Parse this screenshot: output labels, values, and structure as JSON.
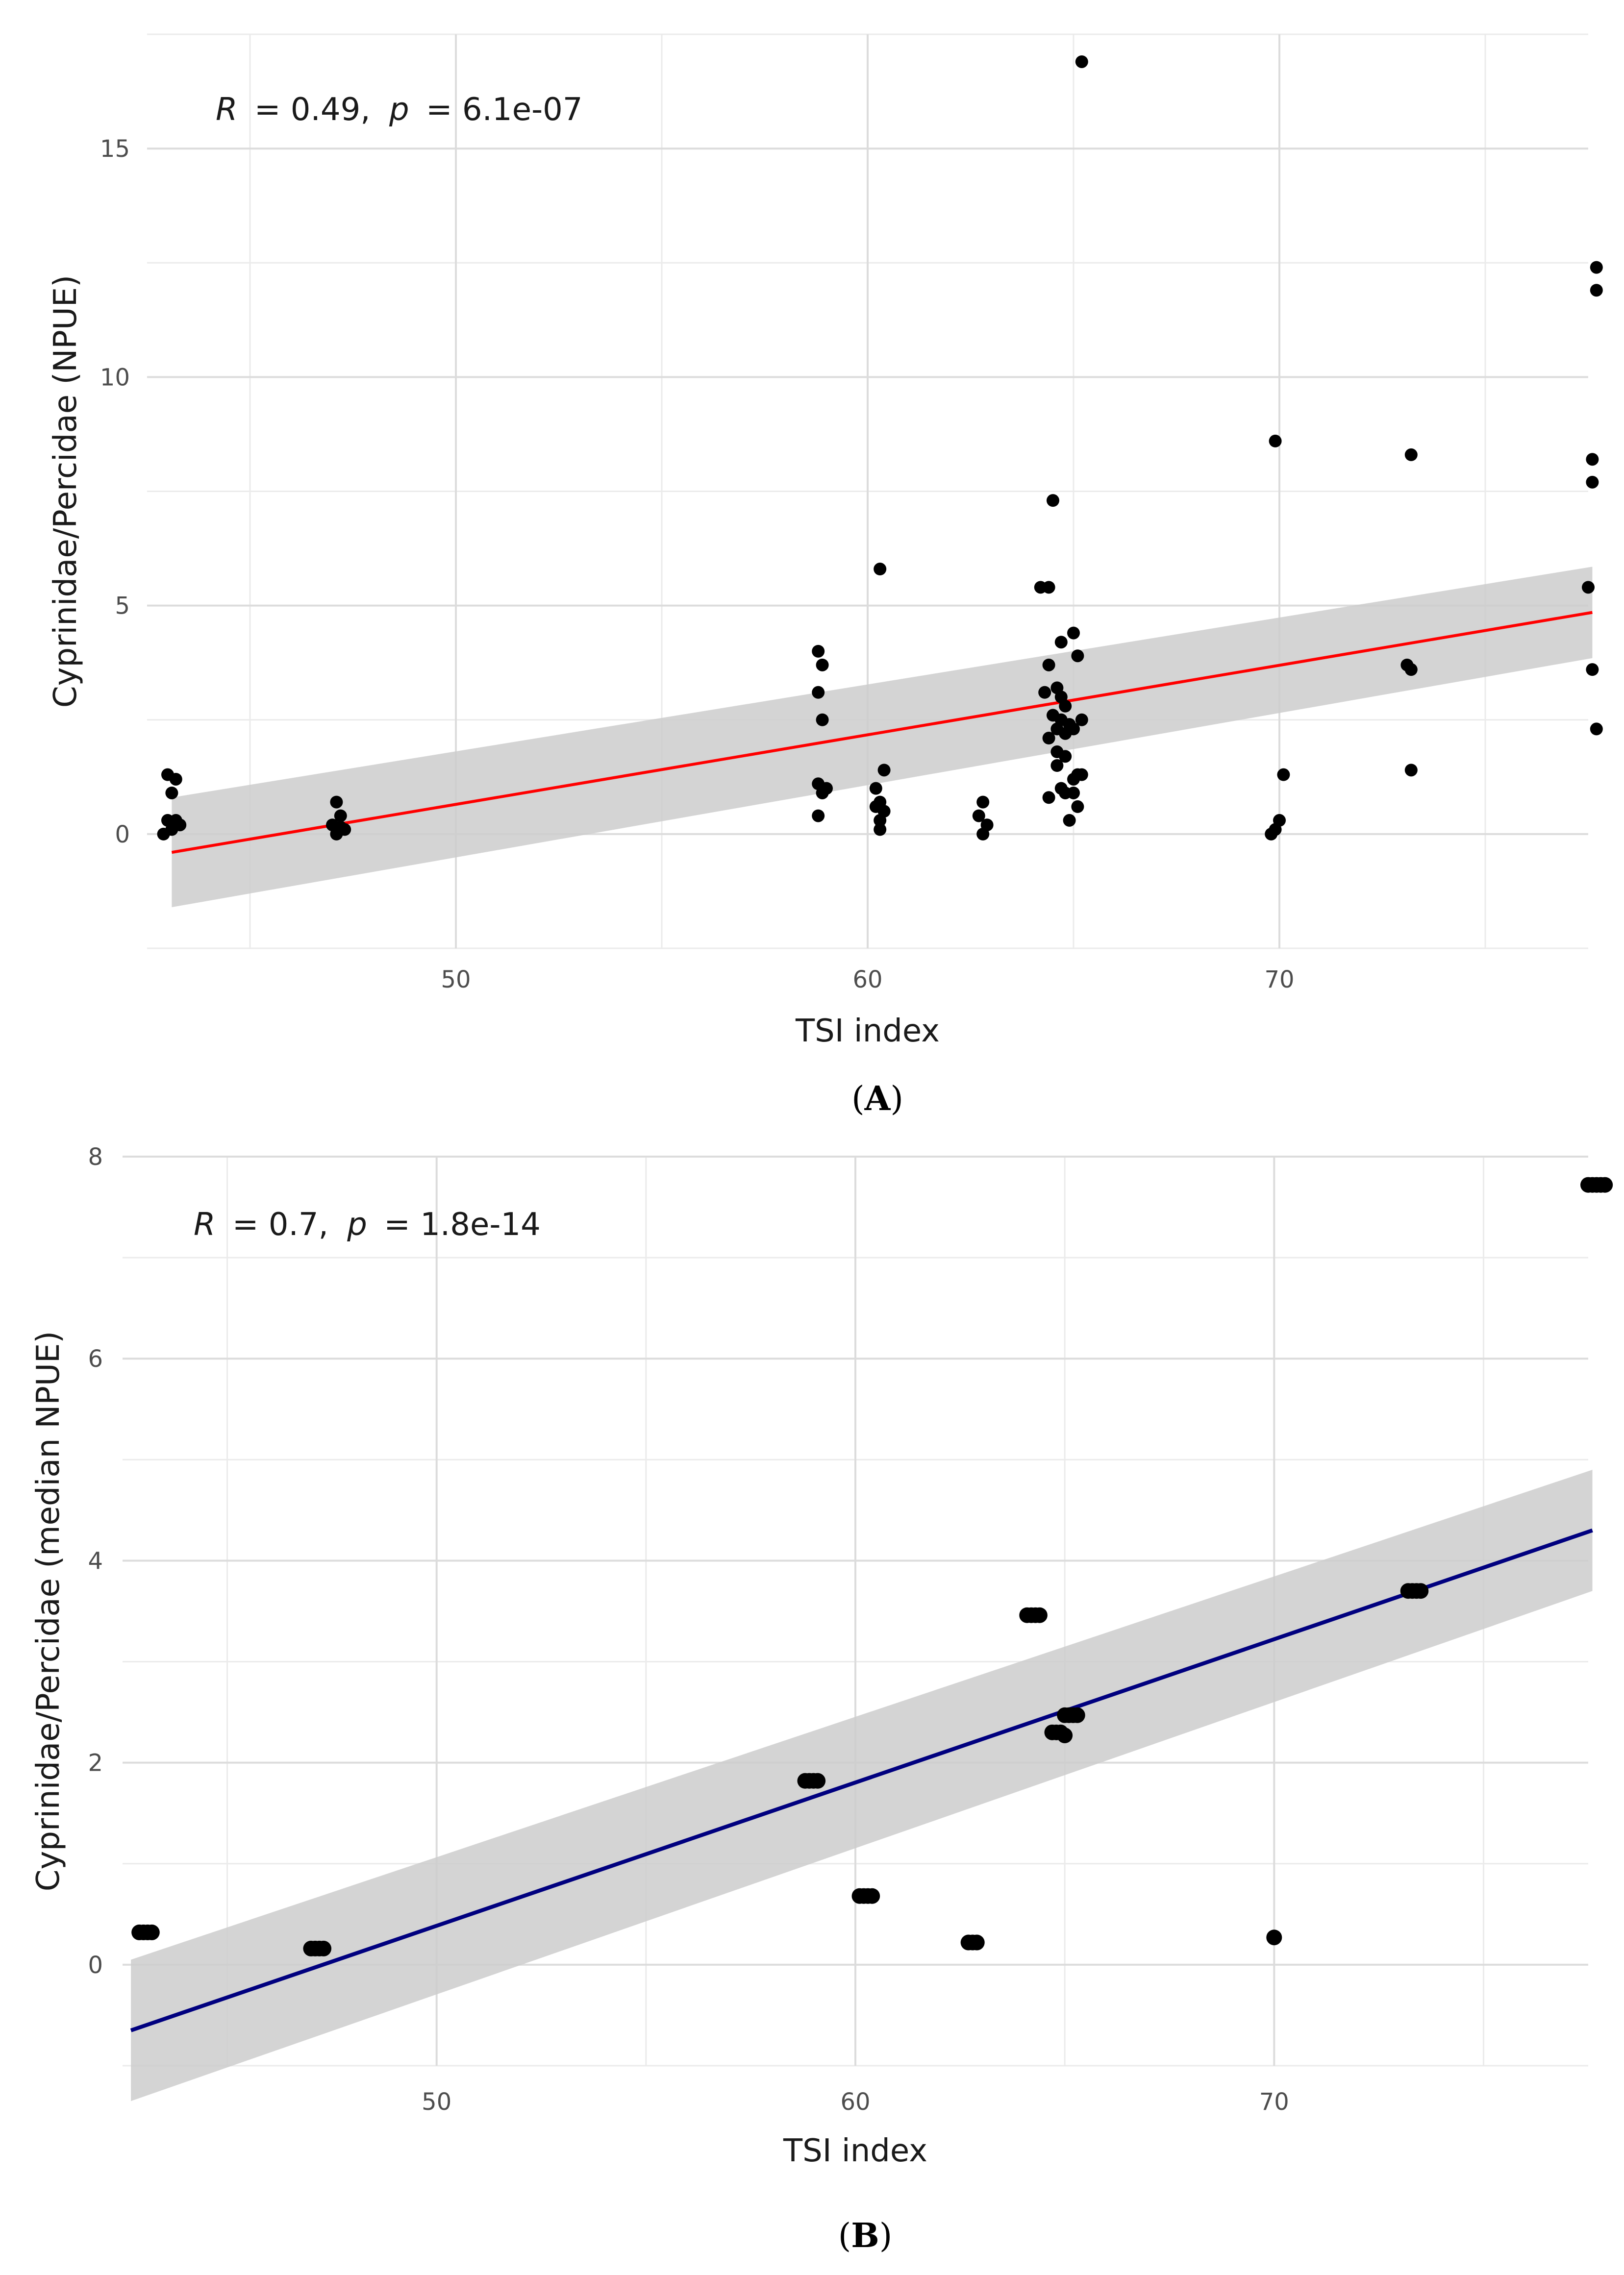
{
  "chart_data": [
    {
      "type": "scatter",
      "panel": "A",
      "caption_letter": "A",
      "xlabel": "TSI index",
      "ylabel": "Cyprinidae/Percidae (NPUE)",
      "xlim": [
        42.5,
        77.5
      ],
      "ylim": [
        -2.5,
        17.5
      ],
      "x_ticks": [
        50,
        60,
        70
      ],
      "x_ticks_minor": [
        45,
        55,
        65,
        75
      ],
      "y_ticks": [
        0,
        5,
        10,
        15
      ],
      "y_ticks_minor": [
        -2.5,
        2.5,
        7.5,
        12.5,
        17.5
      ],
      "annotation": {
        "r_label": "R",
        "r_value": "= 0.49,",
        "p_label": "p",
        "p_value": "= 6.1e-07"
      },
      "fit": {
        "x": [
          43.1,
          77.6
        ],
        "y": [
          -0.4,
          4.85
        ],
        "ci_low_start": -1.6,
        "ci_low_end": 3.85,
        "ci_high_start": 0.8,
        "ci_high_end": 5.85,
        "color": "#ff0000"
      },
      "point_color": "#000000",
      "points": [
        [
          43.0,
          1.3
        ],
        [
          43.2,
          1.2
        ],
        [
          43.1,
          0.9
        ],
        [
          43.0,
          0.3
        ],
        [
          43.3,
          0.2
        ],
        [
          43.1,
          0.1
        ],
        [
          42.9,
          0.0
        ],
        [
          43.2,
          0.3
        ],
        [
          47.1,
          0.7
        ],
        [
          47.2,
          0.4
        ],
        [
          47.0,
          0.2
        ],
        [
          47.3,
          0.1
        ],
        [
          47.1,
          0.0
        ],
        [
          47.2,
          0.15
        ],
        [
          58.8,
          4.0
        ],
        [
          58.9,
          3.7
        ],
        [
          58.8,
          3.1
        ],
        [
          58.9,
          2.5
        ],
        [
          58.8,
          1.1
        ],
        [
          59.0,
          1.0
        ],
        [
          58.9,
          0.9
        ],
        [
          58.8,
          0.4
        ],
        [
          60.3,
          5.8
        ],
        [
          60.4,
          1.4
        ],
        [
          60.2,
          1.0
        ],
        [
          60.3,
          0.7
        ],
        [
          60.4,
          0.5
        ],
        [
          60.2,
          0.6
        ],
        [
          60.3,
          0.3
        ],
        [
          60.3,
          0.1
        ],
        [
          62.8,
          0.7
        ],
        [
          62.7,
          0.4
        ],
        [
          62.9,
          0.2
        ],
        [
          62.8,
          0.0
        ],
        [
          64.2,
          5.4
        ],
        [
          64.4,
          5.4
        ],
        [
          64.5,
          7.3
        ],
        [
          64.4,
          3.7
        ],
        [
          64.6,
          3.2
        ],
        [
          64.3,
          3.1
        ],
        [
          64.7,
          4.2
        ],
        [
          65.0,
          4.4
        ],
        [
          65.1,
          3.9
        ],
        [
          64.7,
          3.0
        ],
        [
          64.8,
          2.8
        ],
        [
          64.5,
          2.6
        ],
        [
          64.7,
          2.5
        ],
        [
          64.9,
          2.4
        ],
        [
          65.2,
          2.5
        ],
        [
          64.6,
          2.3
        ],
        [
          64.8,
          2.2
        ],
        [
          65.0,
          2.3
        ],
        [
          64.4,
          2.1
        ],
        [
          64.6,
          1.8
        ],
        [
          64.8,
          1.7
        ],
        [
          64.6,
          1.5
        ],
        [
          65.1,
          1.3
        ],
        [
          65.0,
          1.2
        ],
        [
          64.7,
          1.0
        ],
        [
          64.4,
          0.8
        ],
        [
          64.8,
          0.9
        ],
        [
          65.0,
          0.9
        ],
        [
          65.1,
          0.6
        ],
        [
          64.9,
          0.3
        ],
        [
          65.2,
          1.3
        ],
        [
          65.2,
          16.9
        ],
        [
          69.9,
          8.6
        ],
        [
          70.1,
          1.3
        ],
        [
          70.0,
          0.3
        ],
        [
          69.9,
          0.1
        ],
        [
          69.8,
          0.0
        ],
        [
          73.2,
          8.3
        ],
        [
          73.1,
          3.7
        ],
        [
          73.2,
          3.6
        ],
        [
          73.2,
          1.4
        ],
        [
          77.7,
          12.4
        ],
        [
          77.7,
          11.9
        ],
        [
          77.6,
          8.2
        ],
        [
          77.6,
          7.7
        ],
        [
          77.5,
          5.4
        ],
        [
          77.6,
          3.6
        ],
        [
          77.7,
          2.3
        ]
      ]
    },
    {
      "type": "scatter",
      "panel": "B",
      "caption_letter": "B",
      "xlabel": "TSI index",
      "ylabel": "Cyprinidae/Percidae (median NPUE)",
      "xlim": [
        42.5,
        77.5
      ],
      "ylim": [
        -1,
        8
      ],
      "x_ticks": [
        50,
        60,
        70
      ],
      "x_ticks_minor": [
        45,
        55,
        65,
        75
      ],
      "y_ticks": [
        0,
        2,
        4,
        6,
        8
      ],
      "y_ticks_minor": [
        -1,
        1,
        3,
        5,
        7
      ],
      "annotation": {
        "r_label": "R",
        "r_value": "= 0.7,",
        "p_label": "p",
        "p_value": "= 1.8e-14"
      },
      "fit": {
        "x": [
          42.7,
          77.6
        ],
        "y": [
          -0.65,
          4.3
        ],
        "ci_low_start": -1.35,
        "ci_low_end": 3.7,
        "ci_high_start": 0.05,
        "ci_high_end": 4.9,
        "color": "#00007f"
      },
      "point_color": "#000000",
      "points": [
        [
          42.9,
          0.32
        ],
        [
          43.0,
          0.32
        ],
        [
          43.1,
          0.32
        ],
        [
          43.2,
          0.32
        ],
        [
          47.0,
          0.16
        ],
        [
          47.1,
          0.16
        ],
        [
          47.2,
          0.16
        ],
        [
          47.3,
          0.16
        ],
        [
          58.8,
          1.82
        ],
        [
          58.9,
          1.82
        ],
        [
          59.0,
          1.82
        ],
        [
          59.1,
          1.82
        ],
        [
          60.1,
          0.68
        ],
        [
          60.2,
          0.68
        ],
        [
          60.3,
          0.68
        ],
        [
          60.4,
          0.68
        ],
        [
          62.7,
          0.22
        ],
        [
          62.8,
          0.22
        ],
        [
          62.9,
          0.22
        ],
        [
          64.1,
          3.46
        ],
        [
          64.2,
          3.46
        ],
        [
          64.3,
          3.46
        ],
        [
          64.4,
          3.46
        ],
        [
          64.7,
          2.3
        ],
        [
          64.8,
          2.3
        ],
        [
          64.9,
          2.3
        ],
        [
          65.0,
          2.27
        ],
        [
          65.0,
          2.47
        ],
        [
          65.1,
          2.47
        ],
        [
          65.2,
          2.47
        ],
        [
          65.3,
          2.47
        ],
        [
          70.0,
          0.27
        ],
        [
          73.2,
          3.7
        ],
        [
          73.3,
          3.7
        ],
        [
          73.4,
          3.7
        ],
        [
          73.5,
          3.7
        ],
        [
          77.5,
          7.72
        ],
        [
          77.6,
          7.72
        ],
        [
          77.7,
          7.72
        ],
        [
          77.8,
          7.72
        ],
        [
          77.9,
          7.72
        ]
      ]
    }
  ]
}
